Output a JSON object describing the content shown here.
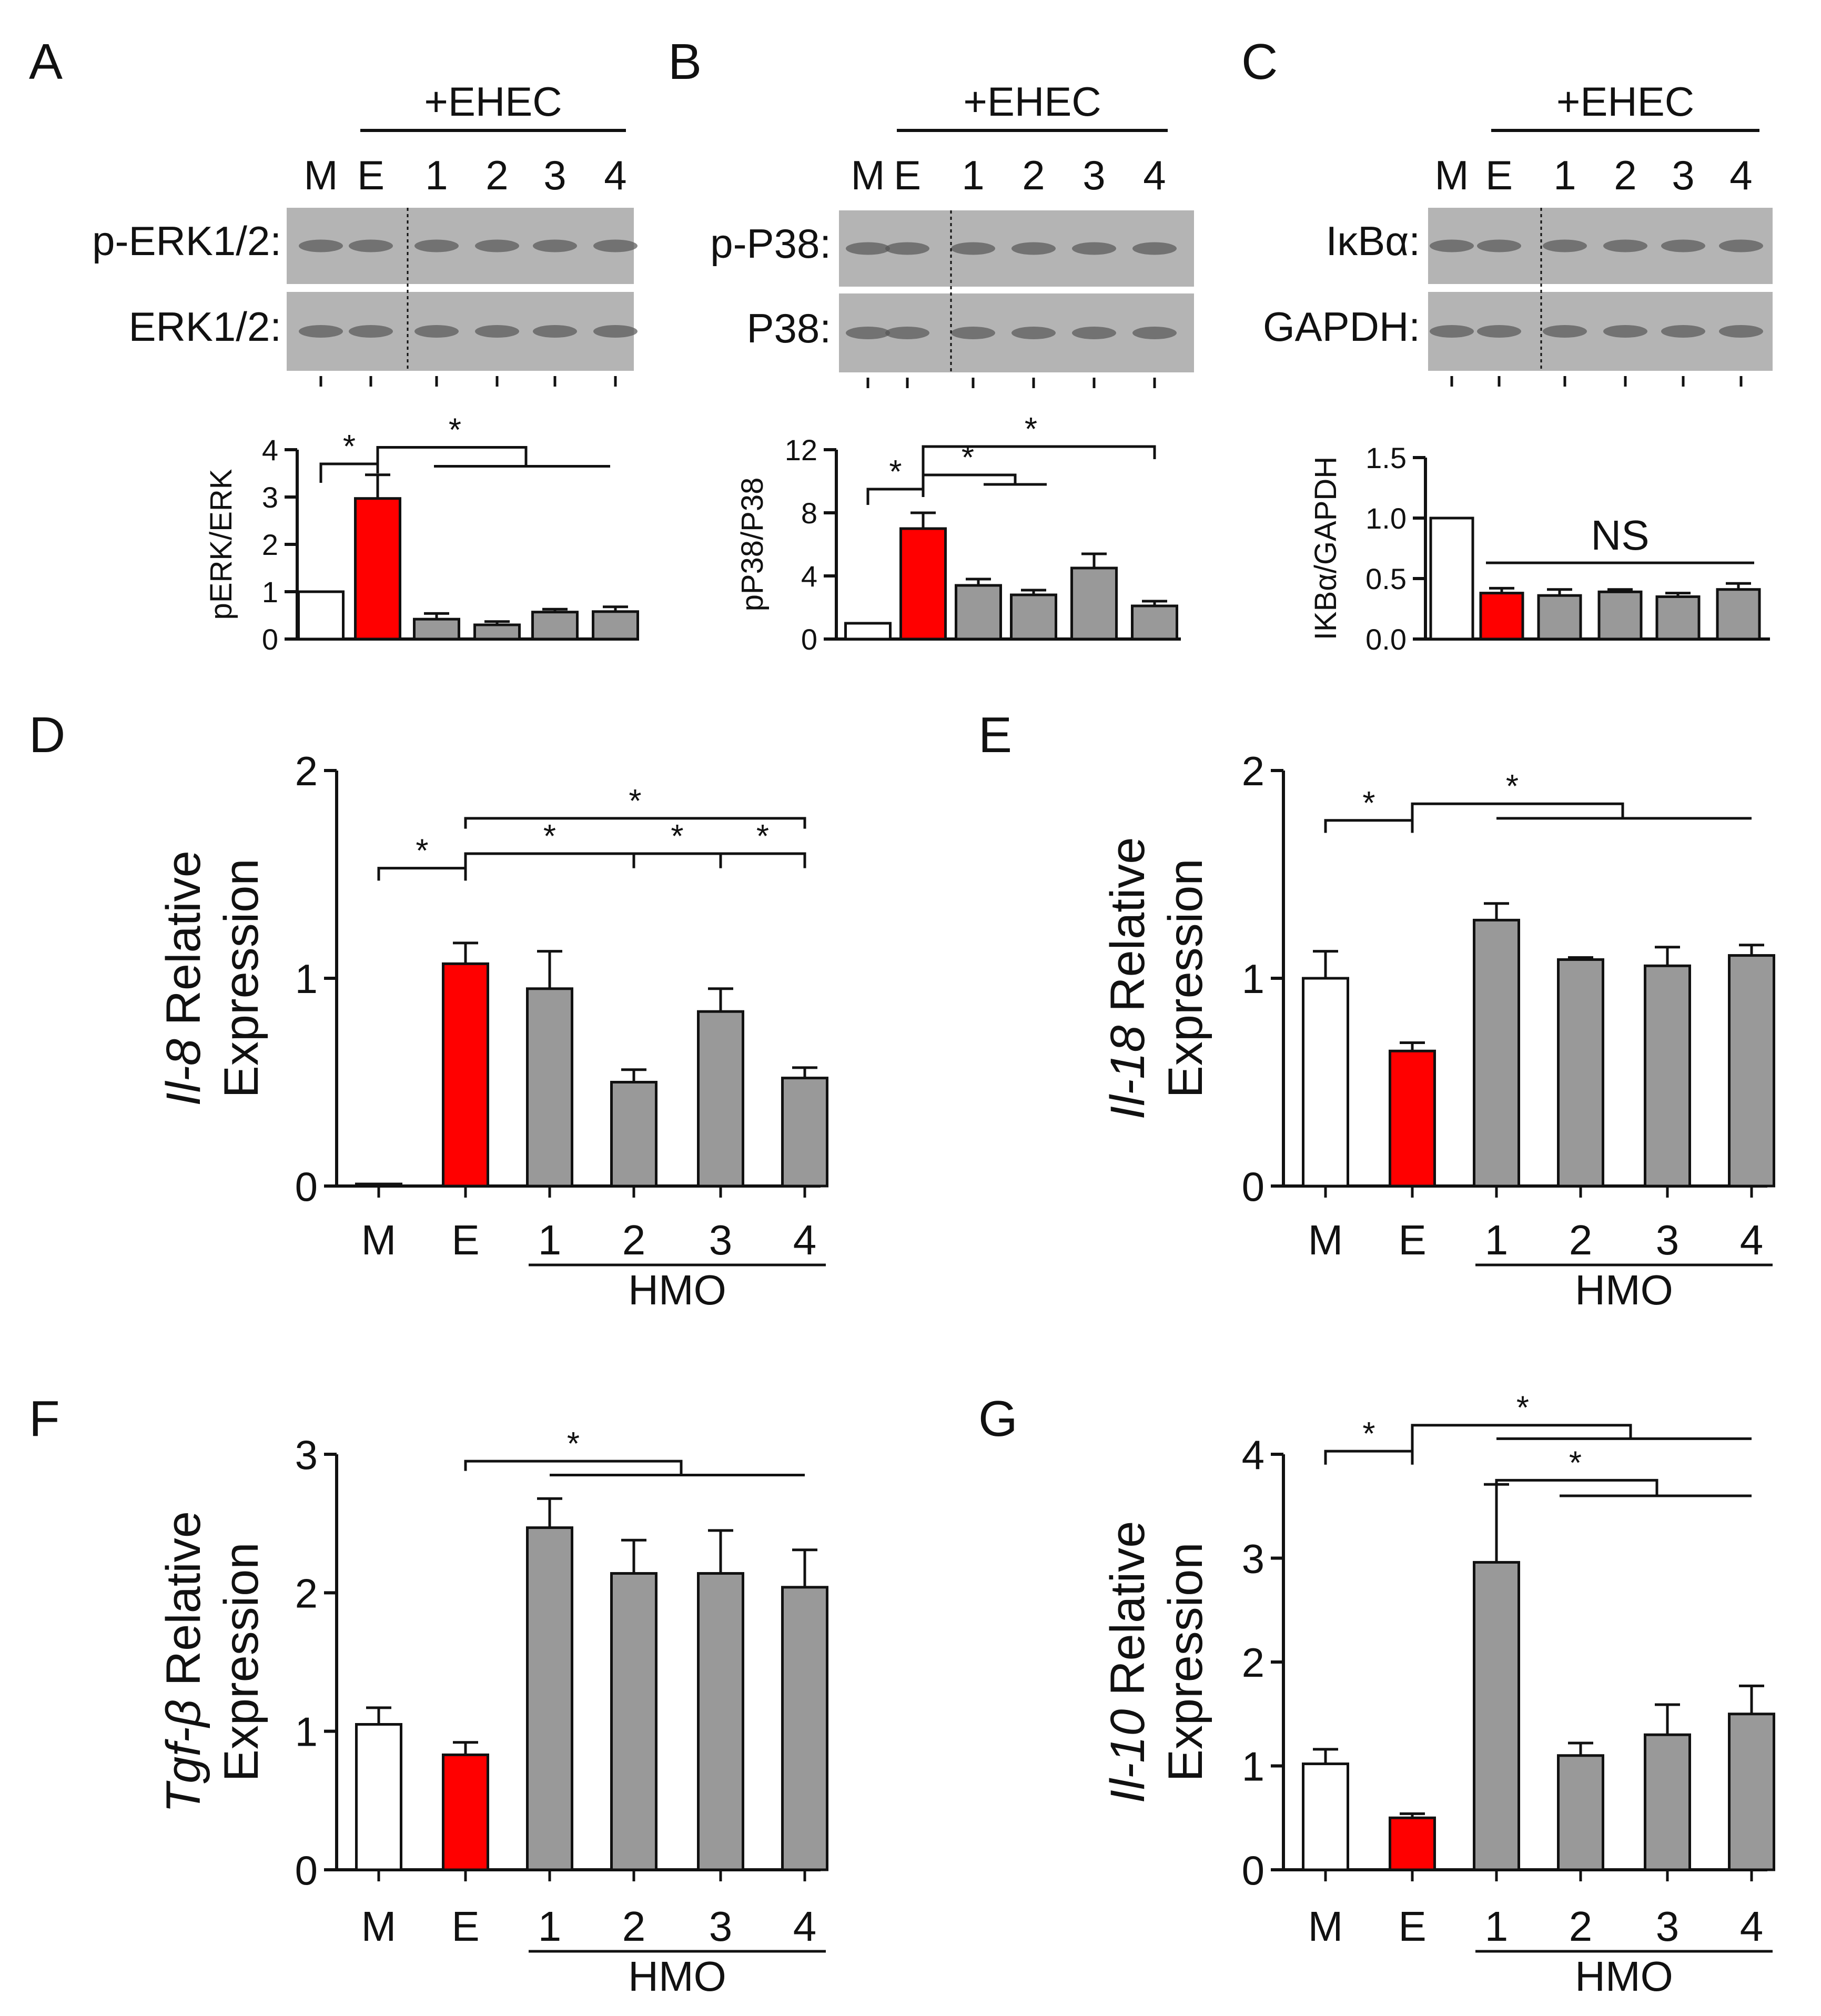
{
  "colors": {
    "mock": "#ffffff",
    "ehec": "#ff0000",
    "hmo": "#999999",
    "axis": "#111111",
    "blot_bg": "#b4b4b4"
  },
  "blots": [
    {
      "panel": "A",
      "header": "+EHEC",
      "lanes": [
        "M",
        "E",
        "1",
        "2",
        "3",
        "4"
      ],
      "rows": [
        {
          "label": "p-ERK1/2:"
        },
        {
          "label": "ERK1/2:"
        }
      ]
    },
    {
      "panel": "B",
      "header": "+EHEC",
      "lanes": [
        "M",
        "E",
        "1",
        "2",
        "3",
        "4"
      ],
      "rows": [
        {
          "label": "p-P38:"
        },
        {
          "label": "P38:"
        }
      ]
    },
    {
      "panel": "C",
      "header": "+EHEC",
      "lanes": [
        "M",
        "E",
        "1",
        "2",
        "3",
        "4"
      ],
      "rows": [
        {
          "label": "IκBα:"
        },
        {
          "label": "GAPDH:"
        }
      ]
    }
  ],
  "chart_data": [
    {
      "panel": "A",
      "type": "bar",
      "ylabel": "pERK/ERK",
      "ylim": [
        0,
        4
      ],
      "yticks": [
        0,
        1,
        2,
        3,
        4
      ],
      "categories": [
        "M",
        "E",
        "1",
        "2",
        "3",
        "4"
      ],
      "values": [
        1.0,
        2.97,
        0.42,
        0.3,
        0.57,
        0.58
      ],
      "errors": [
        0,
        0.5,
        0.12,
        0.07,
        0.06,
        0.1
      ],
      "sig": [
        "*",
        "*"
      ],
      "annotation": ""
    },
    {
      "panel": "B",
      "type": "bar",
      "ylabel": "pP38/P38",
      "ylim": [
        0,
        12
      ],
      "yticks": [
        0,
        4,
        8,
        12
      ],
      "categories": [
        "M",
        "E",
        "1",
        "2",
        "3",
        "4"
      ],
      "values": [
        1.0,
        7.0,
        3.4,
        2.8,
        4.5,
        2.1
      ],
      "errors": [
        0,
        1.0,
        0.4,
        0.3,
        0.9,
        0.3
      ],
      "sig": [
        "*",
        "*",
        "*"
      ],
      "annotation": ""
    },
    {
      "panel": "C",
      "type": "bar",
      "ylabel": "IKBα/GAPDH",
      "ylim": [
        0,
        1.5
      ],
      "yticks": [
        "0.0",
        "0.5",
        "1.0",
        "1.5"
      ],
      "categories": [
        "M",
        "E",
        "1",
        "2",
        "3",
        "4"
      ],
      "values": [
        1.0,
        0.38,
        0.36,
        0.39,
        0.35,
        0.41
      ],
      "errors": [
        0,
        0.04,
        0.05,
        0.02,
        0.03,
        0.05
      ],
      "sig": [],
      "annotation": "NS"
    },
    {
      "panel": "D",
      "type": "bar",
      "ylabel_italic": "Il-8",
      "ylabel_rest": " Relative",
      "ylabel_line2": "Expression",
      "ylim": [
        0,
        2
      ],
      "yticks": [
        0,
        1,
        2
      ],
      "categories": [
        "M",
        "E",
        "1",
        "2",
        "3",
        "4"
      ],
      "values": [
        0.01,
        1.07,
        0.95,
        0.5,
        0.84,
        0.52
      ],
      "errors": [
        0,
        0.1,
        0.18,
        0.06,
        0.11,
        0.05
      ],
      "group_label": "HMO",
      "sig": [
        "*",
        "*",
        "*",
        "*",
        "*"
      ]
    },
    {
      "panel": "E",
      "type": "bar",
      "ylabel_italic": "Il-18",
      "ylabel_rest": " Relative",
      "ylabel_line2": "Expression",
      "ylim": [
        0,
        2
      ],
      "yticks": [
        0,
        1,
        2
      ],
      "categories": [
        "M",
        "E",
        "1",
        "2",
        "3",
        "4"
      ],
      "values": [
        1.0,
        0.65,
        1.28,
        1.09,
        1.06,
        1.11
      ],
      "errors": [
        0.13,
        0.04,
        0.08,
        0.01,
        0.09,
        0.05
      ],
      "group_label": "HMO",
      "sig": [
        "*",
        "*"
      ]
    },
    {
      "panel": "F",
      "type": "bar",
      "ylabel_italic": "Tgf-β",
      "ylabel_rest": " Relative",
      "ylabel_line2": "Expression",
      "ylim": [
        0,
        3
      ],
      "yticks": [
        0,
        1,
        2,
        3
      ],
      "categories": [
        "M",
        "E",
        "1",
        "2",
        "3",
        "4"
      ],
      "values": [
        1.05,
        0.83,
        2.47,
        2.14,
        2.14,
        2.04
      ],
      "errors": [
        0.12,
        0.09,
        0.21,
        0.24,
        0.31,
        0.27
      ],
      "group_label": "HMO",
      "sig": [
        "*"
      ]
    },
    {
      "panel": "G",
      "type": "bar",
      "ylabel_italic": "Il-10",
      "ylabel_rest": " Relative",
      "ylabel_line2": "Expression",
      "ylim": [
        0,
        4
      ],
      "yticks": [
        0,
        1,
        2,
        3,
        4
      ],
      "categories": [
        "M",
        "E",
        "1",
        "2",
        "3",
        "4"
      ],
      "values": [
        1.02,
        0.5,
        2.96,
        1.1,
        1.3,
        1.5
      ],
      "errors": [
        0.14,
        0.04,
        0.75,
        0.12,
        0.29,
        0.27
      ],
      "group_label": "HMO",
      "sig": [
        "*",
        "*",
        "*"
      ]
    }
  ]
}
